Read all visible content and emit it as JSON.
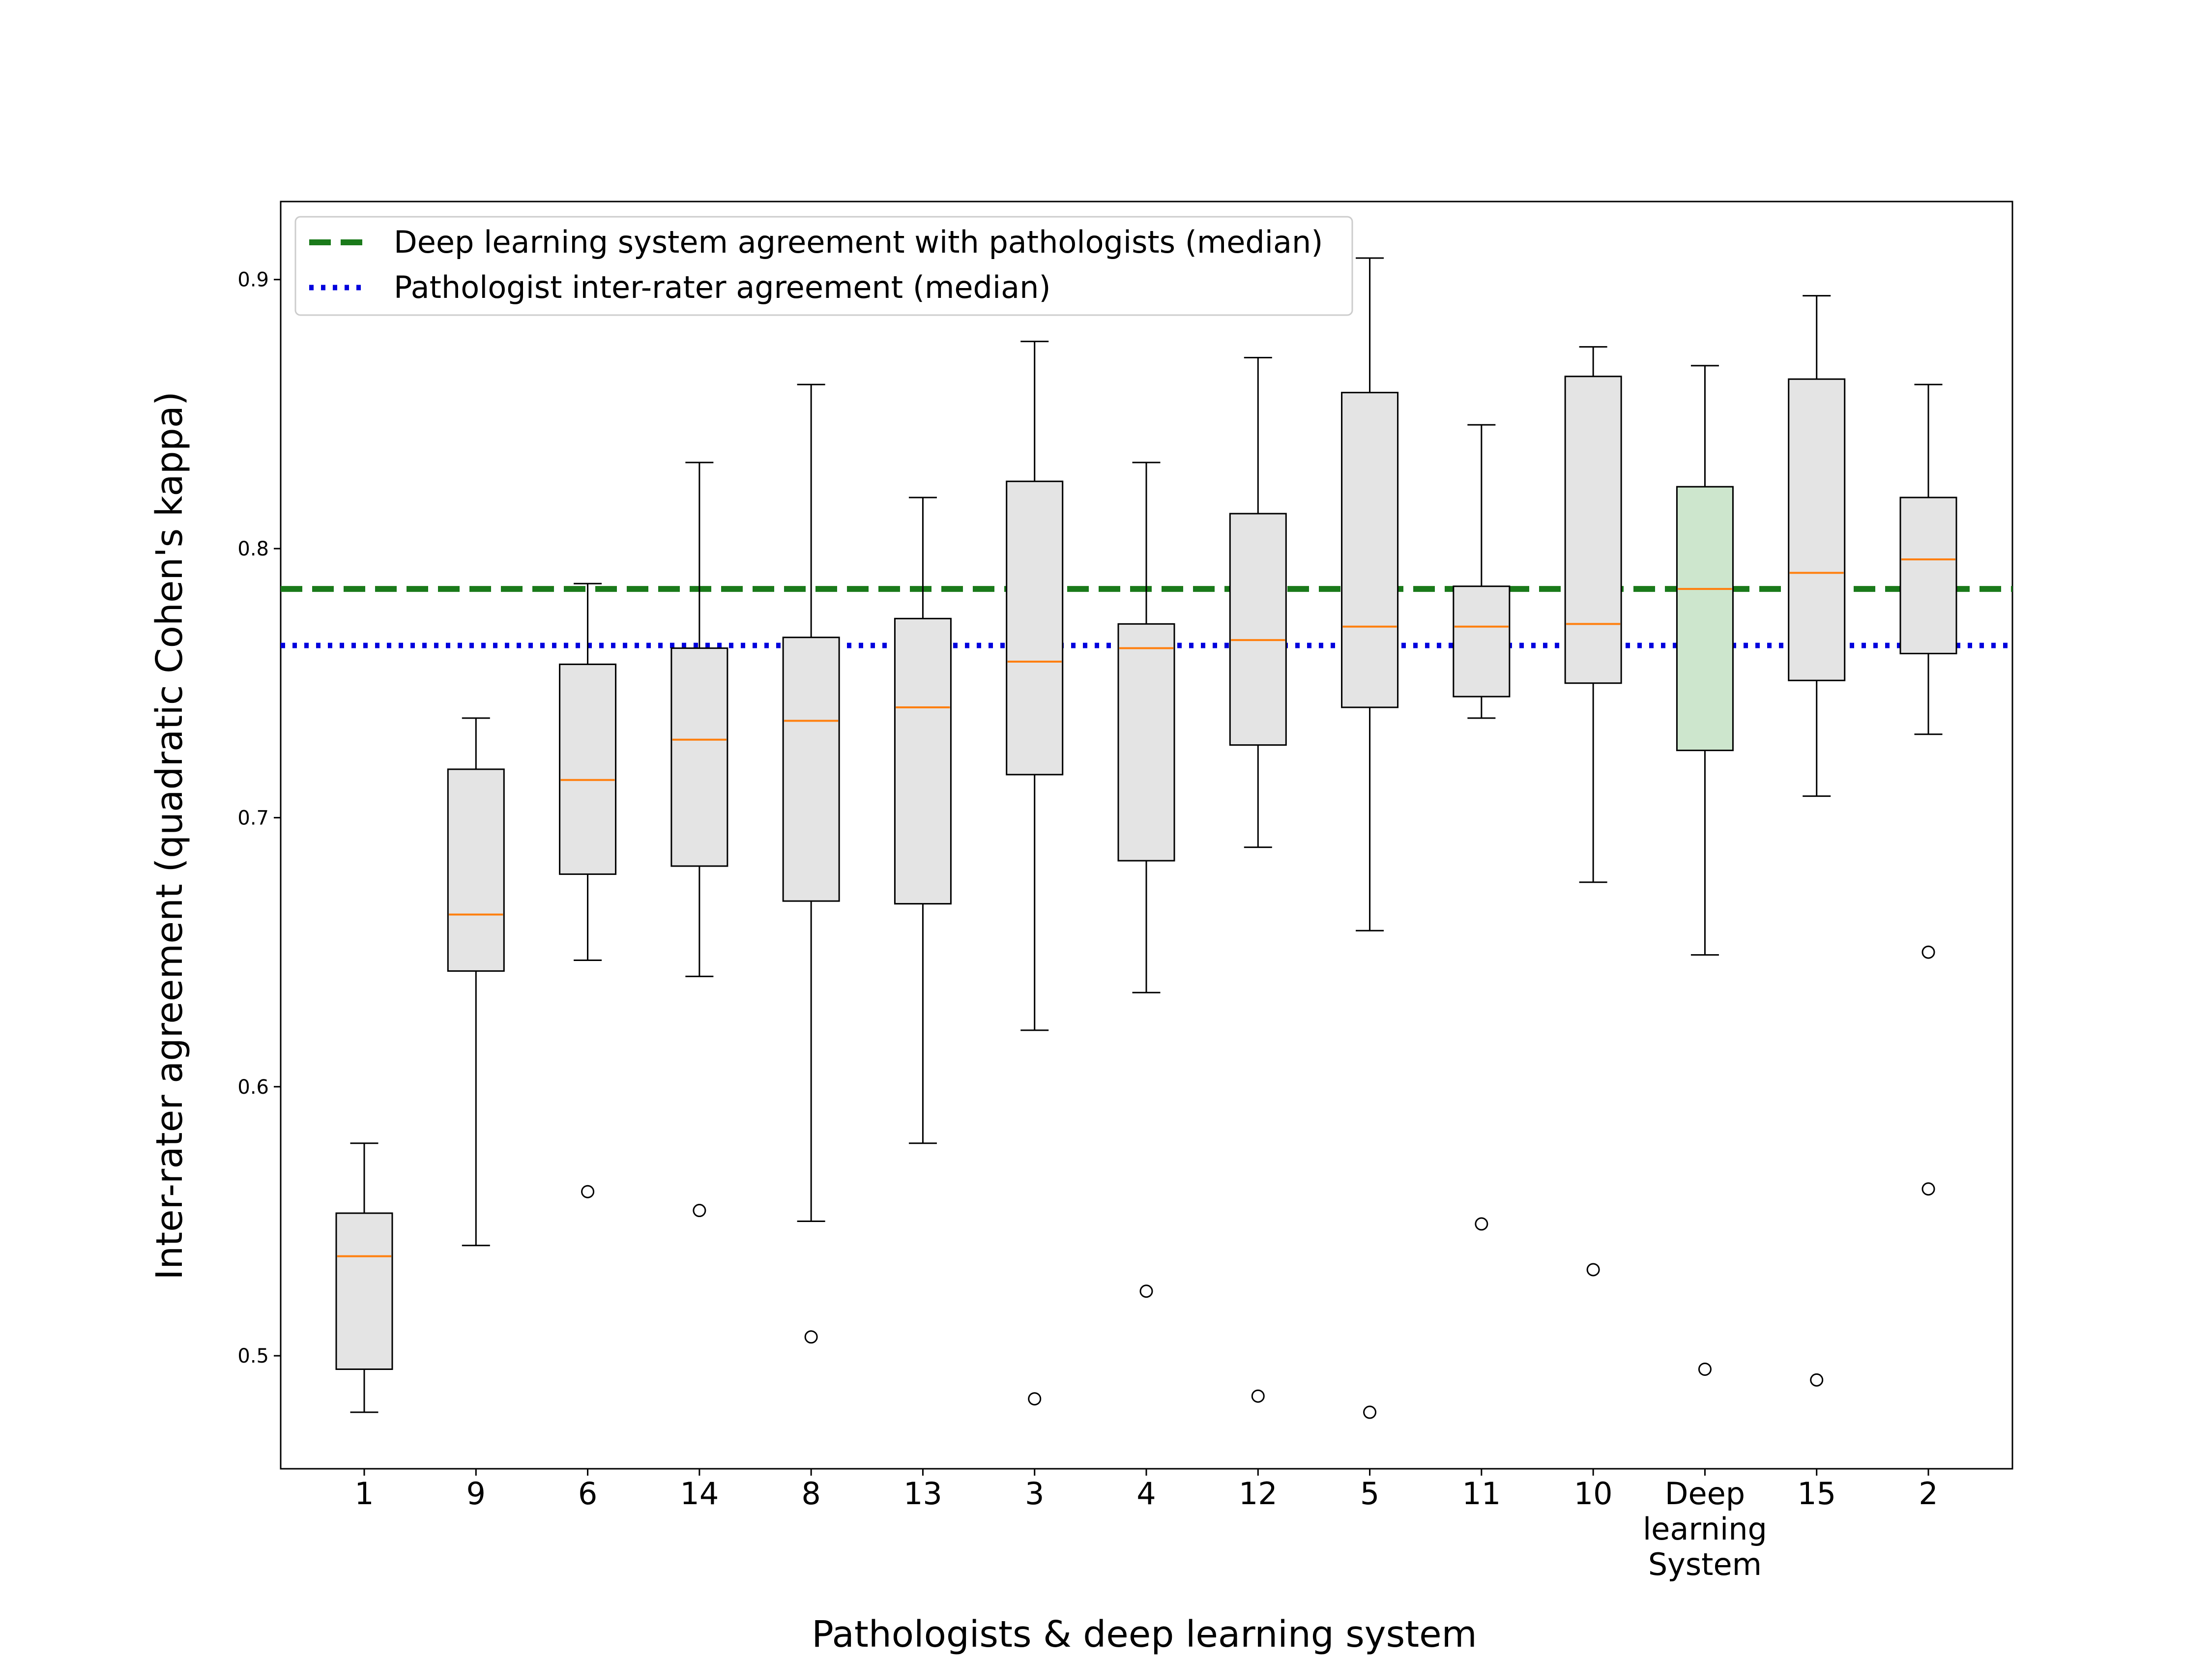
{
  "chart_data": {
    "type": "box",
    "title": "",
    "xlabel": "Pathologists & deep learning system",
    "ylabel": "Inter-rater agreement (quadratic Cohen's kappa)",
    "ylim": [
      0.458,
      0.929
    ],
    "yticks": [
      0.5,
      0.6,
      0.7,
      0.8,
      0.9
    ],
    "ytick_labels": [
      "0.5",
      "0.6",
      "0.7",
      "0.8",
      "0.9"
    ],
    "grid": false,
    "legend_position": "top-left",
    "reference_lines": [
      {
        "label": "Deep learning system agreement with pathologists (median)",
        "value": 0.785,
        "style": "dashed",
        "color": "#1a7a1a"
      },
      {
        "label": "Pathologist inter-rater agreement (median)",
        "value": 0.764,
        "style": "dotted",
        "color": "#0000dd"
      }
    ],
    "colors": {
      "box_fill": "#e4e4e4",
      "highlight_fill": "#cde6cd",
      "median": "#ff7f0e",
      "edge": "#000000"
    },
    "boxes": [
      {
        "label": [
          "1"
        ],
        "whislo": 0.479,
        "q1": 0.495,
        "med": 0.537,
        "q3": 0.553,
        "whishi": 0.579,
        "fliers": []
      },
      {
        "label": [
          "9"
        ],
        "whislo": 0.541,
        "q1": 0.643,
        "med": 0.664,
        "q3": 0.718,
        "whishi": 0.737,
        "fliers": []
      },
      {
        "label": [
          "6"
        ],
        "whislo": 0.647,
        "q1": 0.679,
        "med": 0.714,
        "q3": 0.757,
        "whishi": 0.787,
        "fliers": [
          0.561
        ]
      },
      {
        "label": [
          "14"
        ],
        "whislo": 0.641,
        "q1": 0.682,
        "med": 0.729,
        "q3": 0.763,
        "whishi": 0.832,
        "fliers": [
          0.554
        ]
      },
      {
        "label": [
          "8"
        ],
        "whislo": 0.55,
        "q1": 0.669,
        "med": 0.736,
        "q3": 0.767,
        "whishi": 0.861,
        "fliers": [
          0.507
        ]
      },
      {
        "label": [
          "13"
        ],
        "whislo": 0.579,
        "q1": 0.668,
        "med": 0.741,
        "q3": 0.774,
        "whishi": 0.819,
        "fliers": []
      },
      {
        "label": [
          "3"
        ],
        "whislo": 0.621,
        "q1": 0.716,
        "med": 0.758,
        "q3": 0.825,
        "whishi": 0.877,
        "fliers": [
          0.484
        ]
      },
      {
        "label": [
          "4"
        ],
        "whislo": 0.635,
        "q1": 0.684,
        "med": 0.763,
        "q3": 0.772,
        "whishi": 0.832,
        "fliers": [
          0.524
        ]
      },
      {
        "label": [
          "12"
        ],
        "whislo": 0.689,
        "q1": 0.727,
        "med": 0.766,
        "q3": 0.813,
        "whishi": 0.871,
        "fliers": [
          0.485
        ]
      },
      {
        "label": [
          "5"
        ],
        "whislo": 0.658,
        "q1": 0.741,
        "med": 0.771,
        "q3": 0.858,
        "whishi": 0.908,
        "fliers": [
          0.479
        ]
      },
      {
        "label": [
          "11"
        ],
        "whislo": 0.737,
        "q1": 0.745,
        "med": 0.771,
        "q3": 0.786,
        "whishi": 0.846,
        "fliers": [
          0.549
        ]
      },
      {
        "label": [
          "10"
        ],
        "whislo": 0.676,
        "q1": 0.75,
        "med": 0.772,
        "q3": 0.864,
        "whishi": 0.875,
        "fliers": [
          0.532
        ]
      },
      {
        "label": [
          "Deep",
          "learning",
          "System"
        ],
        "whislo": 0.649,
        "q1": 0.725,
        "med": 0.785,
        "q3": 0.823,
        "whishi": 0.868,
        "fliers": [
          0.495
        ],
        "highlight": true
      },
      {
        "label": [
          "15"
        ],
        "whislo": 0.708,
        "q1": 0.751,
        "med": 0.791,
        "q3": 0.863,
        "whishi": 0.894,
        "fliers": [
          0.491
        ]
      },
      {
        "label": [
          "2"
        ],
        "whislo": 0.731,
        "q1": 0.761,
        "med": 0.796,
        "q3": 0.819,
        "whishi": 0.861,
        "fliers": [
          0.65,
          0.562
        ]
      }
    ]
  }
}
